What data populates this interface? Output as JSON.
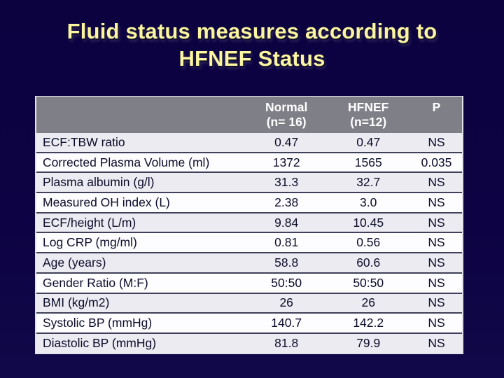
{
  "slide": {
    "title_line1": "Fluid status measures according to",
    "title_line2": "HFNEF Status"
  },
  "table": {
    "columns": [
      {
        "title": "",
        "subtitle": ""
      },
      {
        "title": "Normal",
        "subtitle": "(n= 16)"
      },
      {
        "title": "HFNEF",
        "subtitle": "(n=12)"
      },
      {
        "title": "P",
        "subtitle": ""
      }
    ],
    "rows": [
      {
        "label": "ECF:TBW ratio",
        "normal": "0.47",
        "hfnef": "0.47",
        "p": "NS"
      },
      {
        "label": "Corrected Plasma Volume (ml)",
        "normal": "1372",
        "hfnef": "1565",
        "p": "0.035"
      },
      {
        "label": "Plasma albumin (g/l)",
        "normal": "31.3",
        "hfnef": "32.7",
        "p": "NS"
      },
      {
        "label": "Measured OH index (L)",
        "normal": "2.38",
        "hfnef": "3.0",
        "p": "NS"
      },
      {
        "label": "ECF/height (L/m)",
        "normal": "9.84",
        "hfnef": "10.45",
        "p": "NS"
      },
      {
        "label": "Log CRP (mg/ml)",
        "normal": "0.81",
        "hfnef": "0.56",
        "p": "NS"
      },
      {
        "label": "Age (years)",
        "normal": "58.8",
        "hfnef": "60.6",
        "p": "NS"
      },
      {
        "label": "Gender Ratio (M:F)",
        "normal": "50:50",
        "hfnef": "50:50",
        "p": "NS"
      },
      {
        "label": "BMI (kg/m2)",
        "normal": "26",
        "hfnef": "26",
        "p": "NS"
      },
      {
        "label": "Systolic BP (mmHg)",
        "normal": "140.7",
        "hfnef": "142.2",
        "p": "NS"
      },
      {
        "label": "Diastolic BP (mmHg)",
        "normal": "81.8",
        "hfnef": "79.9",
        "p": "NS"
      }
    ]
  },
  "colors": {
    "slide_background": "#0d0243",
    "title_text": "#fbf5a1",
    "header_background": "#7f7f88",
    "header_text": "#ffffff",
    "row_odd_background": "#ebebf1",
    "row_even_background": "#fdfdff",
    "cell_text": "#0c0c2a",
    "row_separator": "#40405a",
    "table_border": "#e3e3ec"
  }
}
